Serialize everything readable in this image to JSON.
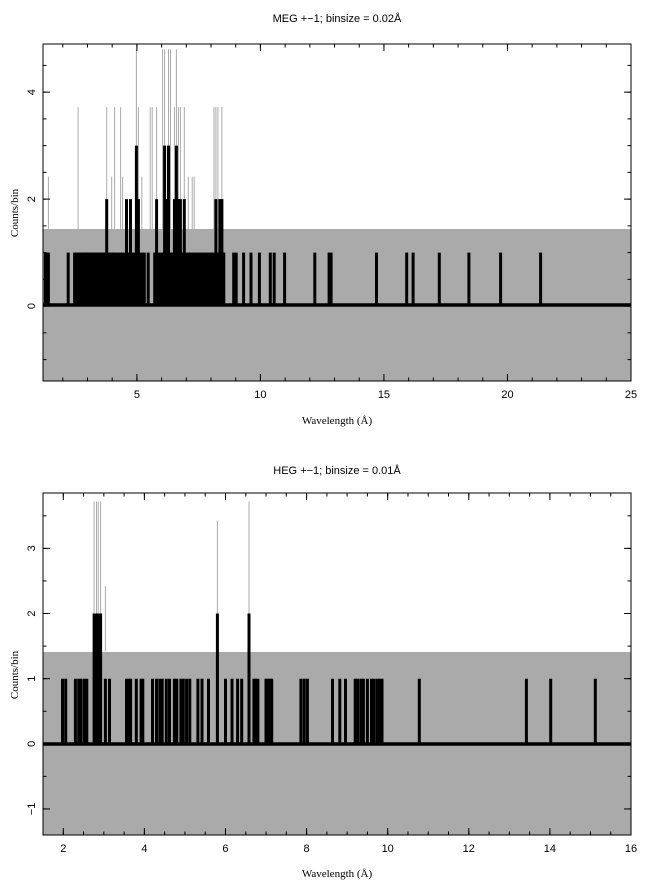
{
  "chart_data": [
    {
      "type": "bar",
      "title": "MEG +−1; binsize = 0.02Å",
      "xlabel": "Wavelength (Å)",
      "ylabel": "Counts/bin",
      "xlim": [
        1.2,
        25
      ],
      "ylim": [
        -1.4,
        4.9
      ],
      "xticks": [
        5,
        10,
        15,
        20,
        25
      ],
      "yticks": [
        0,
        2,
        4
      ],
      "error_band": [
        -1.4,
        1.42
      ],
      "series": [
        {
          "values_kind": "counts",
          "color": "#000000",
          "x": [
            1.3,
            1.36,
            1.42,
            2.22,
            2.48,
            2.54,
            2.6,
            2.66,
            2.72,
            2.8,
            2.86,
            2.92,
            2.98,
            3.04,
            3.1,
            3.16,
            3.22,
            3.28,
            3.34,
            3.4,
            3.46,
            3.52,
            3.58,
            3.64,
            3.7,
            3.78,
            3.86,
            3.92,
            3.98,
            4.04,
            4.1,
            4.18,
            4.26,
            4.34,
            4.42,
            4.5,
            4.58,
            4.66,
            4.74,
            4.82,
            4.9,
            4.98,
            5.06,
            5.14,
            5.22,
            5.3,
            5.46,
            5.72,
            5.8,
            5.88,
            5.96,
            6.04,
            6.12,
            6.2,
            6.28,
            6.36,
            6.44,
            6.52,
            6.6,
            6.68,
            6.76,
            6.84,
            6.92,
            7.0,
            7.08,
            7.16,
            7.24,
            7.32,
            7.4,
            7.48,
            7.56,
            7.64,
            7.72,
            7.8,
            7.88,
            7.96,
            8.04,
            8.12,
            8.2,
            8.28,
            8.36,
            8.44,
            8.52,
            8.92,
            9.02,
            9.32,
            9.62,
            9.96,
            10.4,
            10.56,
            10.98,
            12.2,
            12.78,
            12.86,
            14.7,
            15.92,
            16.18,
            17.24,
            18.44,
            19.72,
            21.34
          ],
          "values": [
            1,
            1,
            1,
            1,
            1,
            1,
            1,
            1,
            1,
            1,
            1,
            1,
            1,
            1,
            1,
            1,
            1,
            1,
            1,
            1,
            1,
            1,
            1,
            1,
            1,
            2,
            1,
            1,
            1,
            1,
            1,
            1,
            1,
            1,
            1,
            1,
            2,
            1,
            2,
            1,
            1,
            3,
            2,
            1,
            1,
            1,
            1,
            1,
            2,
            1,
            1,
            1,
            3,
            2,
            3,
            1,
            1,
            2,
            3,
            2,
            2,
            1,
            2,
            1,
            1,
            1,
            1,
            1,
            1,
            1,
            1,
            1,
            1,
            1,
            1,
            1,
            1,
            1,
            2,
            1,
            2,
            2,
            1,
            1,
            1,
            1,
            1,
            1,
            1,
            1,
            1,
            1,
            1,
            1,
            1,
            1,
            1,
            1,
            1,
            1,
            1
          ]
        },
        {
          "values_kind": "error_upper",
          "color": "#aaaaaa",
          "x": [
            1.42,
            2.62,
            3.78,
            3.98,
            4.1,
            4.34,
            4.42,
            4.98,
            5.06,
            5.2,
            5.54,
            5.62,
            5.8,
            6.04,
            6.12,
            6.28,
            6.36,
            6.52,
            6.6,
            6.68,
            6.76,
            6.92,
            7.08,
            7.24,
            7.32,
            8.12,
            8.2,
            8.28,
            8.44
          ],
          "values": [
            2.42,
            3.72,
            3.72,
            2.42,
            3.72,
            3.72,
            2.42,
            4.8,
            3.72,
            2.42,
            3.72,
            3.72,
            3.72,
            4.8,
            4.8,
            4.8,
            4.8,
            3.72,
            4.8,
            3.72,
            3.72,
            3.72,
            2.42,
            2.42,
            2.42,
            3.72,
            3.72,
            3.72,
            3.72
          ]
        }
      ]
    },
    {
      "type": "bar",
      "title": "HEG +−1; binsize = 0.01Å",
      "xlabel": "Wavelength (Å)",
      "ylabel": "Counts/bin",
      "xlim": [
        1.5,
        16
      ],
      "ylim": [
        -1.4,
        3.85
      ],
      "xticks": [
        2,
        4,
        6,
        8,
        10,
        12,
        14,
        16
      ],
      "yticks": [
        -1,
        0,
        1,
        2,
        3
      ],
      "error_band": [
        -1.4,
        1.42
      ],
      "series": [
        {
          "values_kind": "counts",
          "color": "#000000",
          "x": [
            1.98,
            2.06,
            2.3,
            2.38,
            2.44,
            2.52,
            2.58,
            2.76,
            2.82,
            2.86,
            2.92,
            3.04,
            3.14,
            3.56,
            3.62,
            3.66,
            3.8,
            3.92,
            3.96,
            4.2,
            4.3,
            4.38,
            4.44,
            4.54,
            4.62,
            4.74,
            4.8,
            4.9,
            4.96,
            5.04,
            5.12,
            5.32,
            5.42,
            5.58,
            5.8,
            6.0,
            6.16,
            6.3,
            6.4,
            6.58,
            6.7,
            6.74,
            6.8,
            7.0,
            7.04,
            7.1,
            7.14,
            7.86,
            7.94,
            8.02,
            8.64,
            8.82,
            8.96,
            9.2,
            9.26,
            9.34,
            9.4,
            9.5,
            9.6,
            9.66,
            9.74,
            9.8,
            9.86,
            10.78,
            13.42,
            14.02,
            15.12
          ],
          "values": [
            1,
            1,
            1,
            1,
            1,
            1,
            1,
            2,
            2,
            2,
            2,
            1,
            1,
            1,
            1,
            1,
            1,
            1,
            1,
            1,
            1,
            1,
            1,
            1,
            1,
            1,
            1,
            1,
            1,
            1,
            1,
            1,
            1,
            1,
            2,
            1,
            1,
            1,
            1,
            2,
            1,
            1,
            1,
            1,
            1,
            1,
            1,
            1,
            1,
            1,
            1,
            1,
            1,
            1,
            1,
            1,
            1,
            1,
            1,
            1,
            1,
            1,
            1,
            1,
            1,
            1,
            1
          ]
        },
        {
          "values_kind": "error_upper",
          "color": "#aaaaaa",
          "x": [
            2.76,
            2.82,
            2.86,
            2.92,
            3.04,
            5.8,
            6.58
          ],
          "values": [
            3.72,
            3.72,
            3.72,
            3.72,
            2.42,
            3.42,
            3.72
          ]
        }
      ]
    }
  ]
}
